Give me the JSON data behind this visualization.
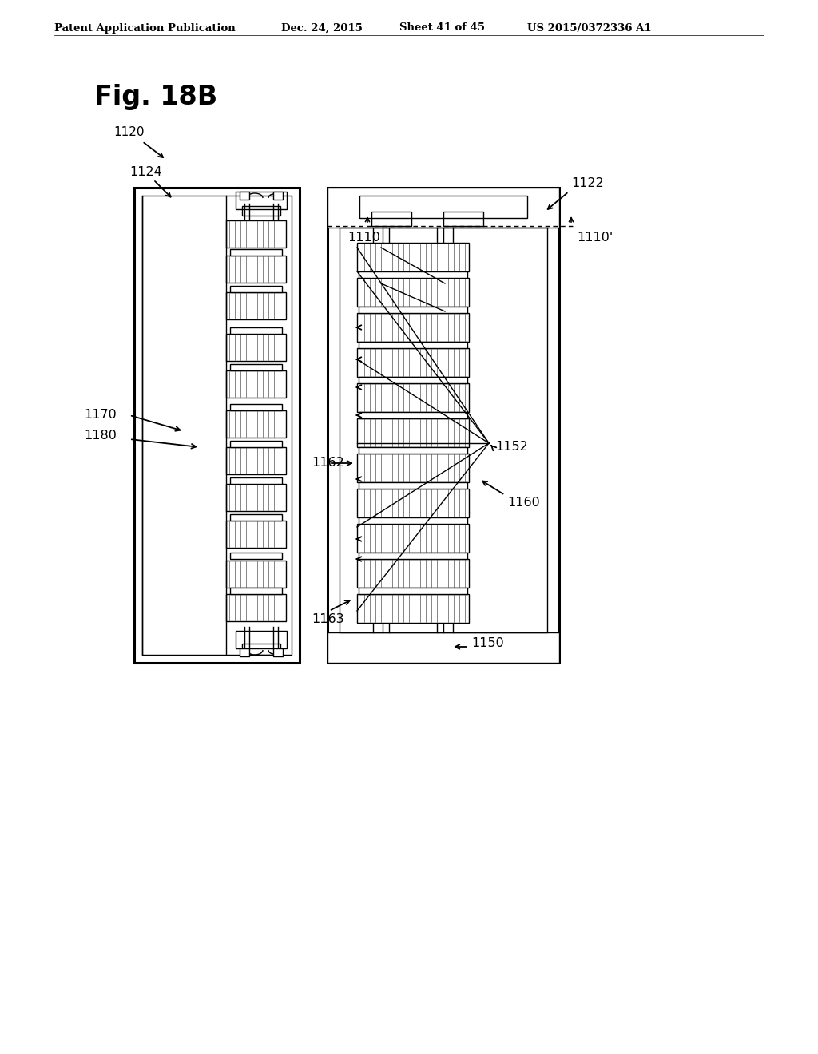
{
  "title_line1": "Patent Application Publication",
  "title_date": "Dec. 24, 2015",
  "title_sheet": "Sheet 41 of 45",
  "title_patent": "US 2015/0372336 A1",
  "fig_label": "Fig. 18B",
  "background": "#ffffff",
  "line_color": "#000000",
  "label_1120": "1120",
  "label_1124": "1124",
  "label_1122": "1122",
  "label_1110": "1110",
  "label_1110p": "1110'",
  "label_1170": "1170",
  "label_1180": "1180",
  "label_1162": "1162",
  "label_1152": "1152",
  "label_1160": "1160",
  "label_1163": "1163",
  "label_1150": "1150"
}
